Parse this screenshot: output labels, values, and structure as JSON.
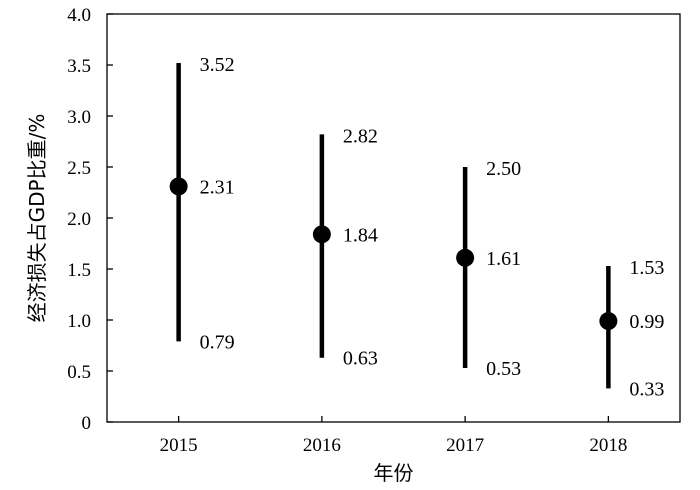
{
  "chart_data": {
    "type": "scatter",
    "xlabel": "年份",
    "ylabel": "经济损失占GDP比重/%",
    "ylim": [
      0,
      4.0
    ],
    "yticks": [
      "0",
      "0.5",
      "1.0",
      "1.5",
      "2.0",
      "2.5",
      "3.0",
      "3.5",
      "4.0"
    ],
    "categories": [
      "2015",
      "2016",
      "2017",
      "2018"
    ],
    "points": [
      {
        "year": "2015",
        "value": 2.31,
        "low": 0.79,
        "high": 3.52,
        "value_label": "2.31",
        "low_label": "0.79",
        "high_label": "3.52"
      },
      {
        "year": "2016",
        "value": 1.84,
        "low": 0.63,
        "high": 2.82,
        "value_label": "1.84",
        "low_label": "0.63",
        "high_label": "2.82"
      },
      {
        "year": "2017",
        "value": 1.61,
        "low": 0.53,
        "high": 2.5,
        "value_label": "1.61",
        "low_label": "0.53",
        "high_label": "2.50"
      },
      {
        "year": "2018",
        "value": 0.99,
        "low": 0.33,
        "high": 1.53,
        "value_label": "0.99",
        "low_label": "0.33",
        "high_label": "1.53"
      }
    ],
    "grid": false,
    "legend": "none",
    "colors": {
      "marker": "#000000",
      "axis": "#000000"
    }
  }
}
